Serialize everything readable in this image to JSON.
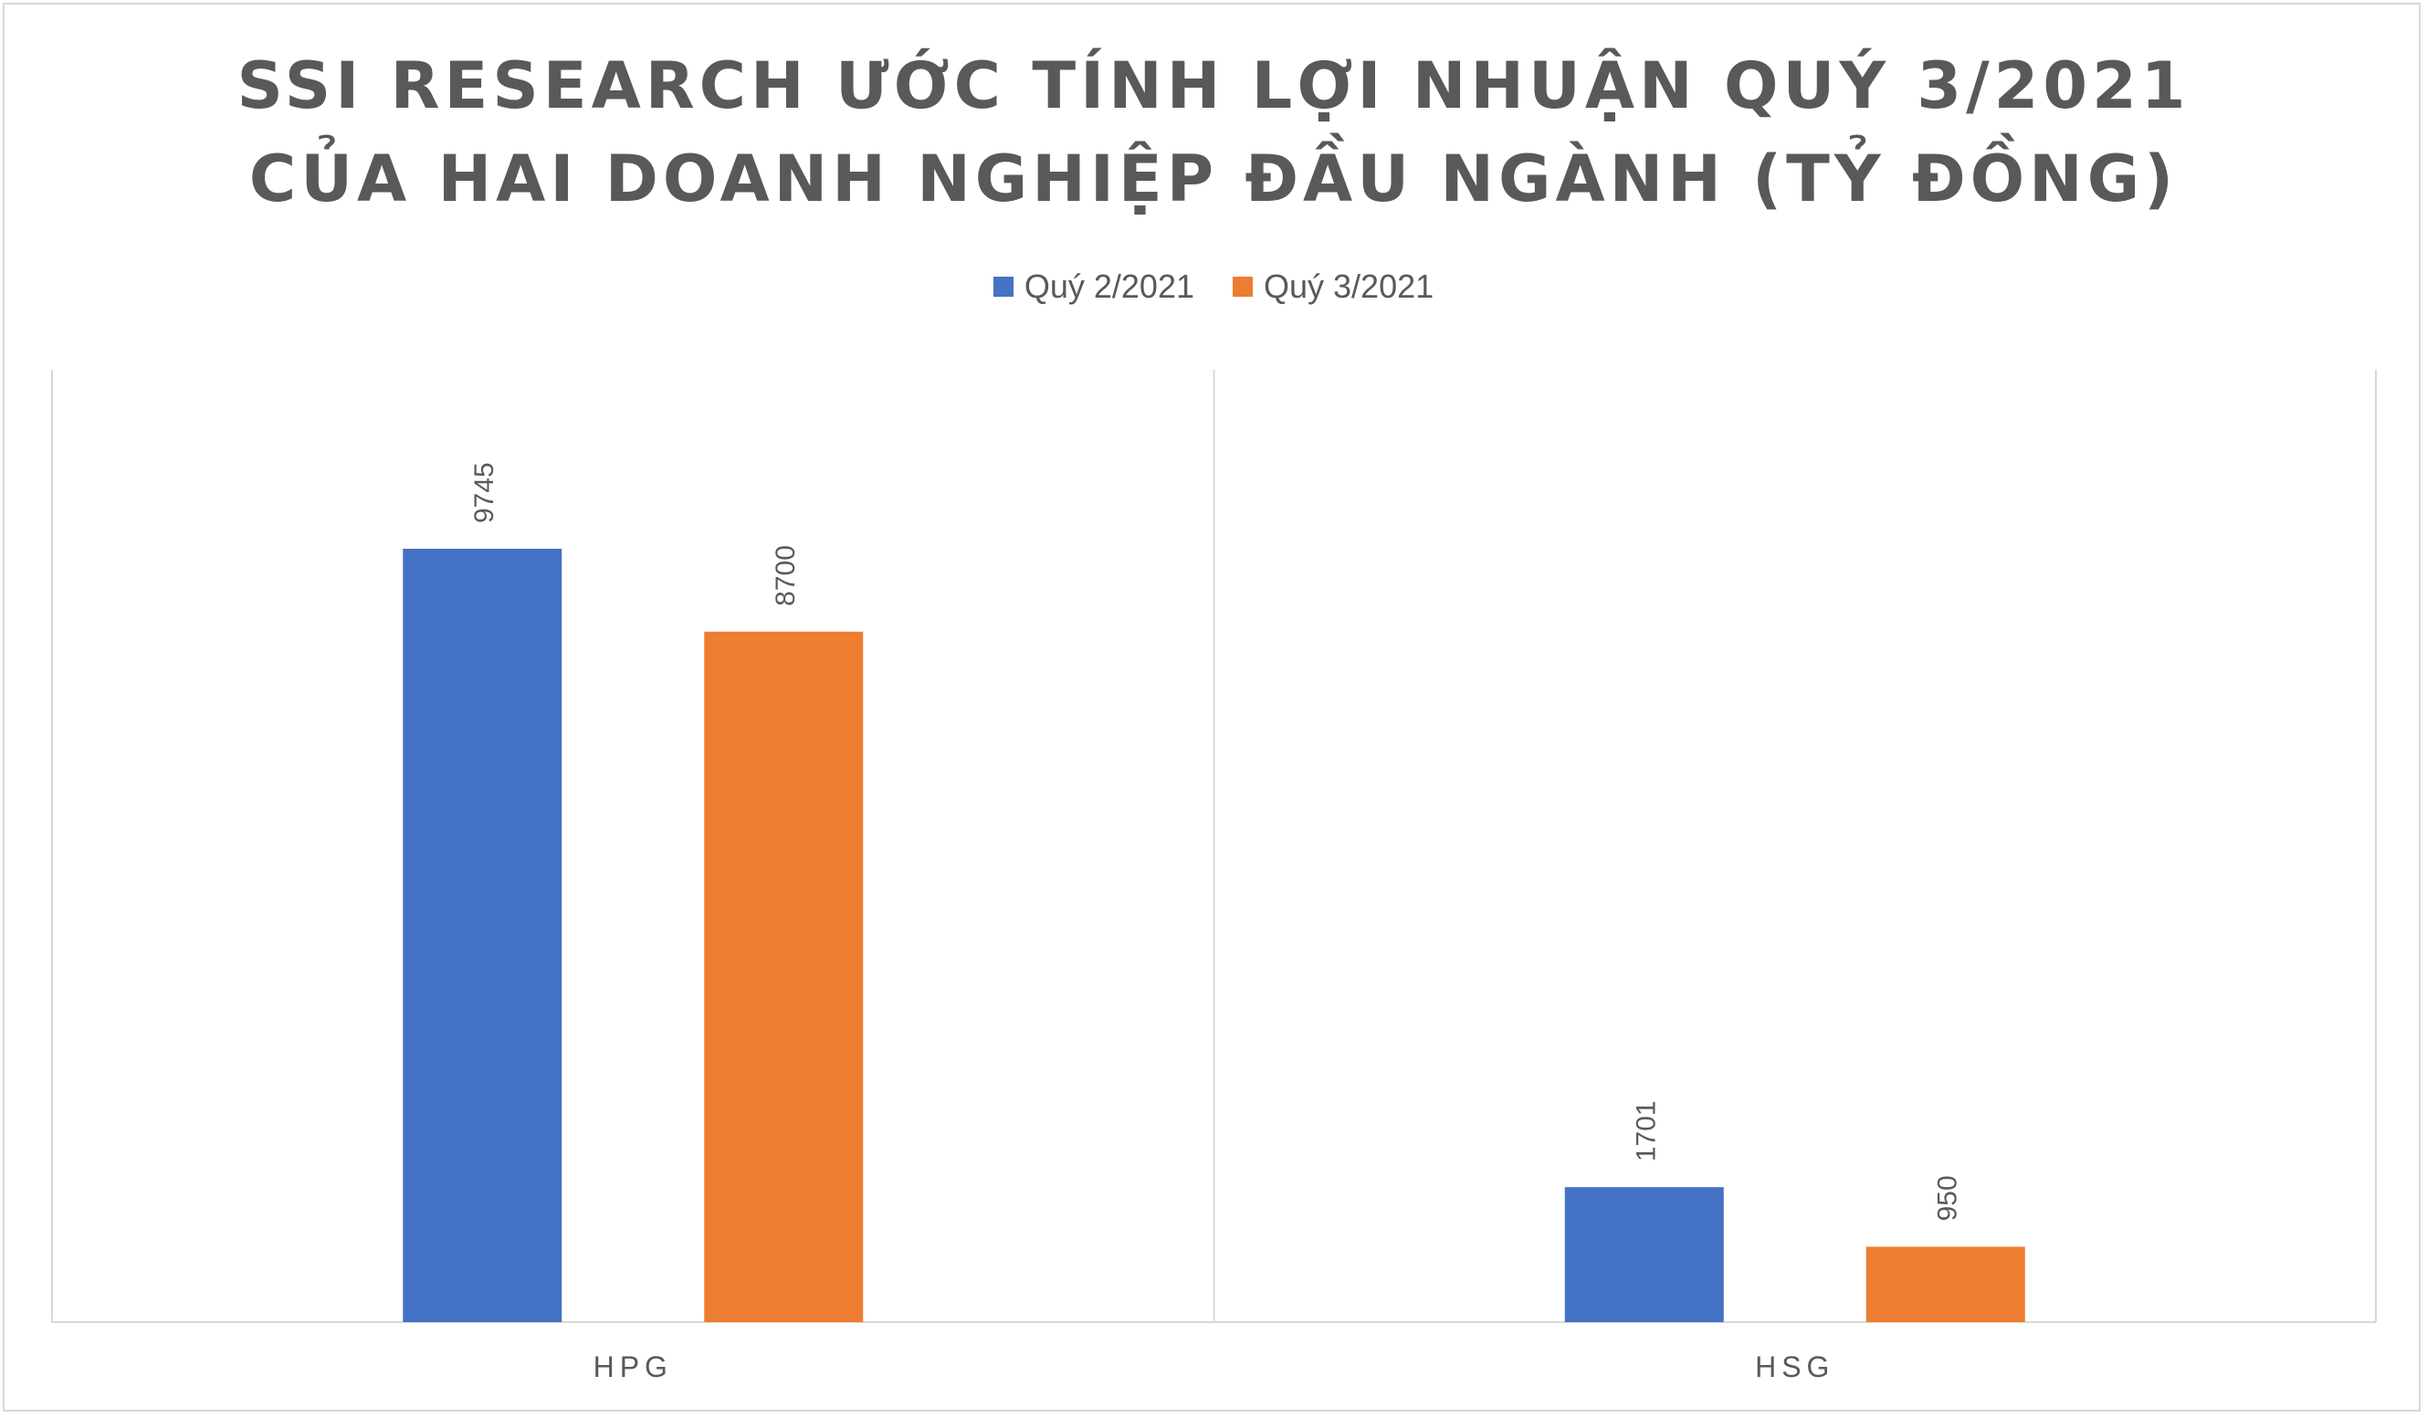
{
  "colors": {
    "series1": "#4472c4",
    "series2": "#ed7d31",
    "axis": "#d9d9d9",
    "text": "#595959",
    "label": "#595959"
  },
  "chart_data": {
    "type": "bar",
    "title_lines": [
      "SSI RESEARCH ƯỚC TÍNH LỢI NHUẬN QUÝ 3/2021",
      "CỦA HAI DOANH NGHIỆP ĐẦU NGÀNH (TỶ ĐỒNG)"
    ],
    "categories": [
      "HPG",
      "HSG"
    ],
    "series": [
      {
        "name": "Quý 2/2021",
        "values": [
          9745,
          1701
        ]
      },
      {
        "name": "Quý 3/2021",
        "values": [
          8700,
          950
        ]
      }
    ],
    "data_labels": [
      [
        "9745",
        "1701"
      ],
      [
        "8700",
        "950"
      ]
    ],
    "ylim": [
      0,
      12000
    ],
    "legend_position": "top-center",
    "grid": false
  }
}
